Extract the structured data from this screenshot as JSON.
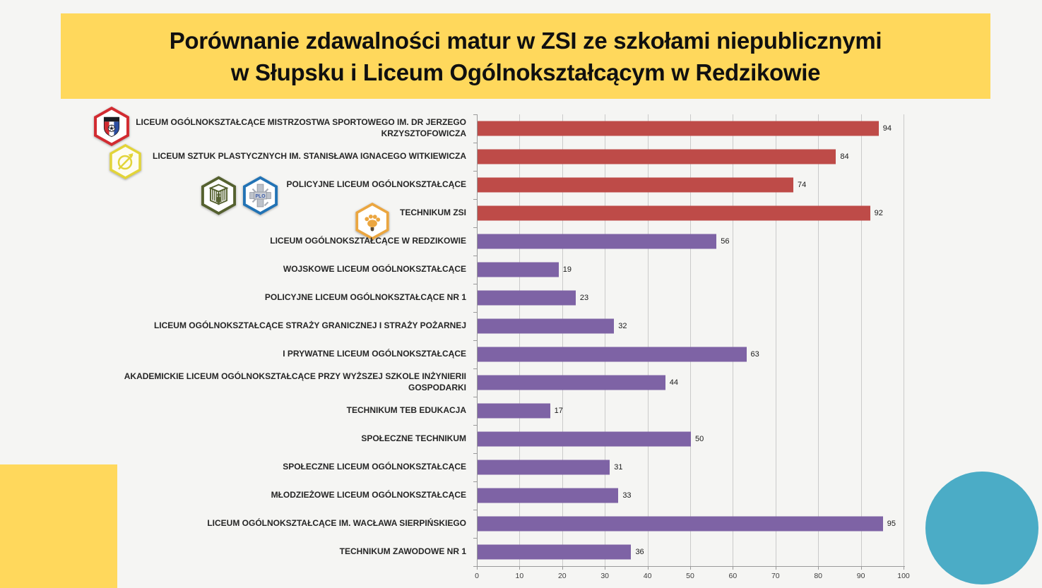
{
  "banner": {
    "title_line1": "Porównanie zdawalności matur w ZSI ze szkołami niepublicznymi",
    "title_line2": "w Słupsku i Liceum Ogólnokształcącym w Redzikowie",
    "background_color": "#FFD85C",
    "text_color": "#101010"
  },
  "decor": {
    "square_color": "#FFD85C",
    "circle_color": "#4BACC6",
    "page_background": "#F5F5F3"
  },
  "chart_data": {
    "type": "bar",
    "orientation": "horizontal",
    "title": "Porównanie zdawalności matur w ZSI ze szkołami niepublicznymi w Słupsku i Liceum Ogólnokształcącym w Redzikowie",
    "categories": [
      "LICEUM OGÓLNOKSZTAŁCĄCE MISTRZOSTWA SPORTOWEGO IM. DR JERZEGO KRZYSZTOFOWICZA",
      "LICEUM SZTUK PLASTYCZNYCH IM. STANISŁAWA IGNACEGO WITKIEWICZA",
      "POLICYJNE LICEUM OGÓLNOKSZTAŁCĄCE",
      "TECHNIKUM ZSI",
      "LICEUM OGÓLNOKSZTAŁCĄCE W REDZIKOWIE",
      "WOJSKOWE LICEUM OGÓLNOKSZTAŁCĄCE",
      "POLICYJNE LICEUM OGÓLNOKSZTAŁCĄCE NR 1",
      "LICEUM OGÓLNOKSZTAŁCĄCE STRAŻY GRANICZNEJ I STRAŻY POŻARNEJ",
      "I PRYWATNE LICEUM OGÓLNOKSZTAŁCĄCE",
      "AKADEMICKIE LICEUM OGÓLNOKSZTAŁCĄCE PRZY WYŻSZEJ SZKOLE INŻYNIERII GOSPODARKI",
      "TECHNIKUM TEB EDUKACJA",
      "SPOŁECZNE TECHNIKUM",
      "SPOŁECZNE LICEUM OGÓLNOKSZTAŁCĄCE",
      "MŁODZIEŻOWE LICEUM OGÓLNOKSZTAŁCĄCE",
      "LICEUM OGÓLNOKSZTAŁCĄCE IM. WACŁAWA SIERPIŃSKIEGO",
      "TECHNIKUM ZAWODOWE NR 1"
    ],
    "values": [
      94,
      84,
      74,
      92,
      56,
      19,
      23,
      32,
      63,
      44,
      17,
      50,
      31,
      33,
      95,
      36
    ],
    "colors": [
      "#BE4B48",
      "#BE4B48",
      "#BE4B48",
      "#BE4B48",
      "#7E63A5",
      "#7E63A5",
      "#7E63A5",
      "#7E63A5",
      "#7E63A5",
      "#7E63A5",
      "#7E63A5",
      "#7E63A5",
      "#7E63A5",
      "#7E63A5",
      "#7E63A5",
      "#7E63A5"
    ],
    "xlim": [
      0,
      100
    ],
    "xticks": [
      0,
      10,
      20,
      30,
      40,
      50,
      60,
      70,
      80,
      90,
      100
    ],
    "grid": true,
    "value_labels": true,
    "legend": false
  },
  "logos": [
    {
      "name": "red-hexagon-football-shield-crest",
      "text": ""
    },
    {
      "name": "yellow-hexagon-art-crest",
      "text": ""
    },
    {
      "name": "olive-hexagon-gate-crest",
      "text": ""
    },
    {
      "name": "blue-hexagon-plo-cross-crest",
      "text": "PLO"
    },
    {
      "name": "orange-hexagon-paw-crest",
      "text": ""
    }
  ]
}
